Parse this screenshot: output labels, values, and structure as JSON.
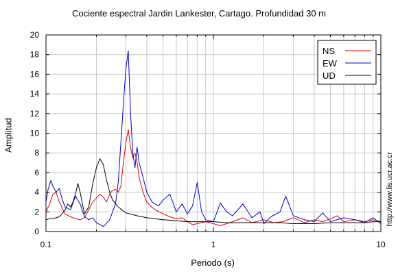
{
  "chart_data": {
    "type": "line",
    "title": "Cociente espectral Jardin Lankester, Cartago. Profundidad 30 m",
    "xlabel": "Periodo (s)",
    "ylabel": "Amplitud",
    "x_scale": "log",
    "xlim": [
      0.1,
      10
    ],
    "ylim": [
      0,
      20
    ],
    "x_ticks": [
      "0.1",
      "1",
      "10"
    ],
    "y_ticks": [
      "0",
      "2",
      "4",
      "6",
      "8",
      "10",
      "12",
      "14",
      "16",
      "18",
      "20"
    ],
    "grid": true,
    "legend_position": "top-right",
    "series": [
      {
        "name": "NS",
        "color": "#e00000",
        "x": [
          0.1,
          0.105,
          0.11,
          0.115,
          0.12,
          0.13,
          0.14,
          0.15,
          0.16,
          0.17,
          0.18,
          0.19,
          0.2,
          0.21,
          0.22,
          0.23,
          0.24,
          0.25,
          0.26,
          0.27,
          0.28,
          0.29,
          0.3,
          0.31,
          0.32,
          0.33,
          0.34,
          0.35,
          0.36,
          0.38,
          0.4,
          0.42,
          0.45,
          0.5,
          0.55,
          0.6,
          0.65,
          0.7,
          0.75,
          0.8,
          0.9,
          1.0,
          1.1,
          1.2,
          1.3,
          1.5,
          1.7,
          2.0,
          2.3,
          2.6,
          3.0,
          3.5,
          4.0,
          4.5,
          5.0,
          5.5,
          6.0,
          7.0,
          8.0,
          9.0,
          10.0
        ],
        "y": [
          2.0,
          2.8,
          3.8,
          4.0,
          3.0,
          1.8,
          1.5,
          1.3,
          1.2,
          1.4,
          2.2,
          3.0,
          3.4,
          3.8,
          3.5,
          3.0,
          3.8,
          4.2,
          4.3,
          4.0,
          4.6,
          7.0,
          9.0,
          10.4,
          8.5,
          7.5,
          8.0,
          7.0,
          5.5,
          4.0,
          3.0,
          2.6,
          2.2,
          1.8,
          1.5,
          1.3,
          1.4,
          1.0,
          0.7,
          0.8,
          1.0,
          0.8,
          0.6,
          0.8,
          1.0,
          1.4,
          0.9,
          1.2,
          0.9,
          1.0,
          1.4,
          0.9,
          1.2,
          1.0,
          1.3,
          1.6,
          1.0,
          1.2,
          1.0,
          1.2,
          1.0
        ]
      },
      {
        "name": "EW",
        "color": "#0000cc",
        "x": [
          0.1,
          0.103,
          0.107,
          0.11,
          0.115,
          0.12,
          0.125,
          0.13,
          0.14,
          0.15,
          0.16,
          0.17,
          0.18,
          0.19,
          0.2,
          0.22,
          0.24,
          0.26,
          0.27,
          0.28,
          0.29,
          0.3,
          0.31,
          0.32,
          0.33,
          0.34,
          0.35,
          0.36,
          0.38,
          0.4,
          0.43,
          0.47,
          0.5,
          0.55,
          0.6,
          0.65,
          0.7,
          0.75,
          0.8,
          0.85,
          0.9,
          1.0,
          1.1,
          1.2,
          1.3,
          1.5,
          1.7,
          1.9,
          2.0,
          2.2,
          2.5,
          2.7,
          3.0,
          3.5,
          4.0,
          4.5,
          5.0,
          6.0,
          7.0,
          8.0,
          9.0,
          10.0
        ],
        "y": [
          3.0,
          4.3,
          5.2,
          4.6,
          4.0,
          4.4,
          3.3,
          2.5,
          2.2,
          3.6,
          2.8,
          1.5,
          1.2,
          1.4,
          0.9,
          0.5,
          1.2,
          2.8,
          5.0,
          9.0,
          13.0,
          16.5,
          18.4,
          12.0,
          8.0,
          6.5,
          8.6,
          7.0,
          5.5,
          4.0,
          3.0,
          2.6,
          3.2,
          3.8,
          2.0,
          2.8,
          1.8,
          2.6,
          5.0,
          2.0,
          1.2,
          1.0,
          2.9,
          2.0,
          1.6,
          2.8,
          1.4,
          2.0,
          0.8,
          1.5,
          2.0,
          3.6,
          1.6,
          1.2,
          1.0,
          1.9,
          1.0,
          1.4,
          1.2,
          0.9,
          1.4,
          0.8
        ]
      },
      {
        "name": "UD",
        "color": "#000000",
        "x": [
          0.1,
          0.105,
          0.11,
          0.115,
          0.12,
          0.125,
          0.13,
          0.135,
          0.14,
          0.145,
          0.15,
          0.155,
          0.16,
          0.165,
          0.17,
          0.18,
          0.19,
          0.2,
          0.21,
          0.22,
          0.23,
          0.24,
          0.25,
          0.27,
          0.3,
          0.35,
          0.4,
          0.5,
          0.6,
          0.7,
          0.8,
          0.9,
          1.0,
          1.2,
          1.5,
          2.0,
          2.5,
          3.0,
          4.0,
          5.0,
          6.0,
          7.0,
          8.0,
          9.0,
          10.0
        ],
        "y": [
          1.2,
          1.3,
          1.3,
          1.4,
          1.5,
          1.8,
          2.2,
          2.8,
          2.5,
          3.0,
          3.8,
          4.9,
          4.0,
          2.8,
          1.8,
          2.5,
          4.8,
          6.5,
          7.4,
          6.8,
          5.2,
          4.0,
          3.2,
          2.5,
          1.9,
          1.6,
          1.4,
          1.2,
          1.1,
          1.0,
          1.0,
          1.0,
          1.0,
          0.9,
          0.9,
          0.9,
          0.9,
          0.8,
          0.8,
          0.9,
          0.9,
          0.9,
          0.9,
          1.0,
          1.0
        ]
      }
    ]
  },
  "credit": "http://www.lis.ucr.ac.cr"
}
